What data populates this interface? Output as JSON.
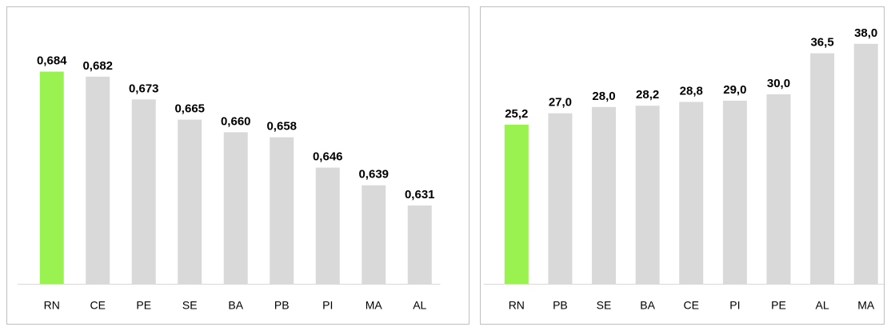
{
  "chart_data": [
    {
      "type": "bar",
      "categories": [
        "RN",
        "CE",
        "PE",
        "SE",
        "BA",
        "PB",
        "PI",
        "MA",
        "AL"
      ],
      "values": [
        0.684,
        0.682,
        0.673,
        0.665,
        0.66,
        0.658,
        0.646,
        0.639,
        0.631
      ],
      "value_labels": [
        "0,684",
        "0,682",
        "0,673",
        "0,665",
        "0,660",
        "0,658",
        "0,646",
        "0,639",
        "0,631"
      ],
      "colors": [
        "#99f24f",
        "#d9d9d9",
        "#d9d9d9",
        "#d9d9d9",
        "#d9d9d9",
        "#d9d9d9",
        "#d9d9d9",
        "#d9d9d9",
        "#d9d9d9"
      ],
      "ylim": [
        0.6,
        0.7
      ]
    },
    {
      "type": "bar",
      "categories": [
        "RN",
        "PB",
        "SE",
        "BA",
        "CE",
        "PI",
        "PE",
        "AL",
        "MA"
      ],
      "values": [
        25.2,
        27.0,
        28.0,
        28.2,
        28.8,
        29.0,
        30.0,
        36.5,
        38.0
      ],
      "value_labels": [
        "25,2",
        "27,0",
        "28,0",
        "28,2",
        "28,8",
        "29,0",
        "30,0",
        "36,5",
        "38,0"
      ],
      "colors": [
        "#99f24f",
        "#d9d9d9",
        "#d9d9d9",
        "#d9d9d9",
        "#d9d9d9",
        "#d9d9d9",
        "#d9d9d9",
        "#d9d9d9",
        "#d9d9d9"
      ],
      "ylim": [
        0,
        40
      ]
    }
  ]
}
